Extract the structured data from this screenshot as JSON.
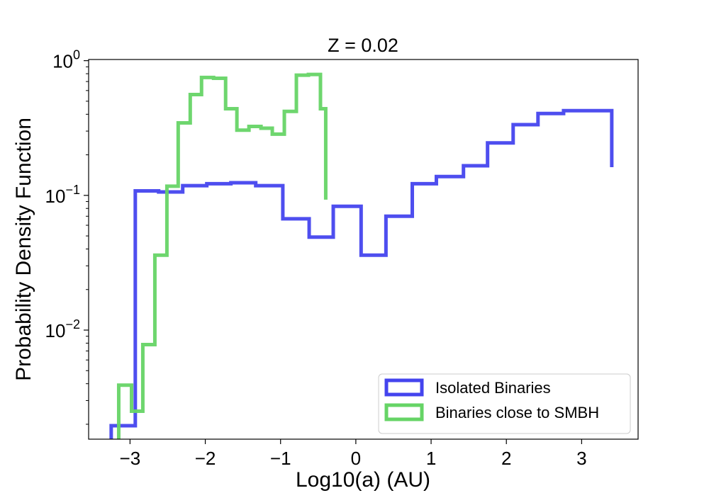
{
  "chart_data": {
    "type": "histogram-step",
    "title": "Z = 0.02",
    "xlabel": "Log10(a) (AU)",
    "ylabel": "Probability Density Function",
    "xlim": [
      -3.55,
      3.75
    ],
    "ylim": [
      0.00155,
      1.02
    ],
    "yscale": "log",
    "x_ticks": [
      -3,
      -2,
      -1,
      0,
      1,
      2,
      3
    ],
    "x_tick_labels": [
      "−3",
      "−2",
      "−1",
      "0",
      "1",
      "2",
      "3"
    ],
    "y_ticks": [
      0.01,
      0.1,
      1
    ],
    "y_tick_labels": [
      {
        "base": "10",
        "exp": "−2"
      },
      {
        "base": "10",
        "exp": "−1"
      },
      {
        "base": "10",
        "exp": "0"
      }
    ],
    "grid": false,
    "legend": {
      "location": "lower-right"
    },
    "series": [
      {
        "name": "Isolated Binaries",
        "color": "#4444ee",
        "edges": [
          -3.25,
          -2.93,
          -2.62,
          -2.3,
          -1.98,
          -1.66,
          -1.33,
          -0.97,
          -0.62,
          -0.3,
          0.07,
          0.4,
          0.75,
          1.07,
          1.43,
          1.75,
          2.09,
          2.42,
          2.76,
          3.4
        ],
        "values": [
          0.00195,
          0.108,
          0.106,
          0.118,
          0.122,
          0.124,
          0.118,
          0.067,
          0.049,
          0.083,
          0.036,
          0.07,
          0.122,
          0.138,
          0.166,
          0.245,
          0.335,
          0.405,
          0.425,
          0.162
        ]
      },
      {
        "name": "Binaries close to SMBH",
        "color": "#66d466",
        "edges": [
          -3.15,
          -2.98,
          -2.83,
          -2.67,
          -2.51,
          -2.36,
          -2.2,
          -2.05,
          -1.89,
          -1.73,
          -1.58,
          -1.42,
          -1.26,
          -1.11,
          -0.95,
          -0.79,
          -0.63,
          -0.47,
          -0.4
        ],
        "values": [
          0.0039,
          0.0025,
          0.0078,
          0.036,
          0.117,
          0.345,
          0.56,
          0.75,
          0.74,
          0.44,
          0.305,
          0.325,
          0.315,
          0.285,
          0.42,
          0.78,
          0.79,
          0.44,
          0.093
        ]
      }
    ]
  }
}
